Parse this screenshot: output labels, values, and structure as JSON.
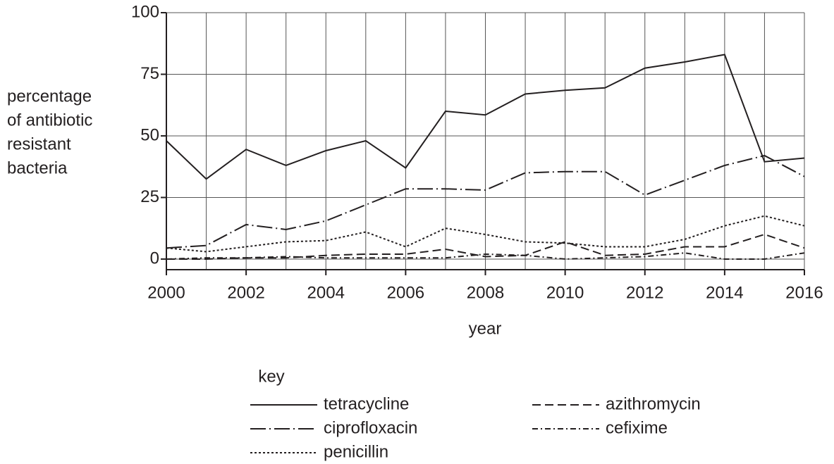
{
  "chart_data": {
    "type": "line",
    "xlabel": "year",
    "ylabel": [
      "percentage",
      "of antibiotic",
      "resistant",
      "bacteria"
    ],
    "legend_title": "key",
    "x": [
      2000,
      2001,
      2002,
      2003,
      2004,
      2005,
      2006,
      2007,
      2008,
      2009,
      2010,
      2011,
      2012,
      2013,
      2014,
      2015,
      2016
    ],
    "xlim": [
      2000,
      2016
    ],
    "xticks": [
      2000,
      2002,
      2004,
      2006,
      2008,
      2010,
      2012,
      2014,
      2016
    ],
    "ylim": [
      -4.3,
      100
    ],
    "yticks": [
      0,
      25,
      50,
      75,
      100
    ],
    "grid": true,
    "series": [
      {
        "name": "tetracycline",
        "color": "#231f20",
        "dash": "solid",
        "values": [
          48,
          32.5,
          44.5,
          38,
          44,
          48,
          37,
          60,
          58.5,
          67,
          68.5,
          69.5,
          77.5,
          80,
          83,
          39.5,
          41
        ]
      },
      {
        "name": "ciprofloxacin",
        "color": "#231f20",
        "dash": "long-dash-dot",
        "values": [
          4.5,
          5.5,
          14,
          12,
          15.5,
          22,
          28.5,
          28.5,
          28,
          35,
          35.5,
          35.5,
          26,
          32,
          38,
          42,
          33.5
        ]
      },
      {
        "name": "penicillin",
        "color": "#231f20",
        "dash": "dotted",
        "values": [
          4.5,
          3,
          5,
          7,
          7.5,
          11,
          5,
          12.5,
          10,
          7,
          6.5,
          5,
          5,
          8,
          13.5,
          17.5,
          13.5
        ]
      },
      {
        "name": "azithromycin",
        "color": "#231f20",
        "dash": "dashed",
        "values": [
          0,
          0,
          0.5,
          0.5,
          1.5,
          2,
          2,
          4,
          1,
          1.5,
          7,
          1.5,
          2,
          5,
          5,
          10,
          4.5
        ]
      },
      {
        "name": "cefixime",
        "color": "#231f20",
        "dash": "dash-dot",
        "values": [
          0,
          0.5,
          0.5,
          1,
          0.5,
          0.5,
          0.5,
          0.5,
          2,
          1.5,
          0,
          0.5,
          1,
          2.5,
          0,
          0,
          2.5
        ]
      }
    ]
  }
}
